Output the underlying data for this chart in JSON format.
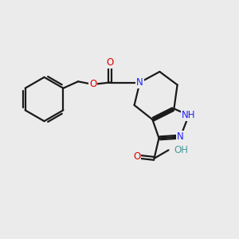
{
  "background_color": "#ebebeb",
  "bond_color": "#1a1a1a",
  "atom_colors": {
    "N": "#2020ff",
    "O": "#dd0000",
    "OH": "#4a9a9a",
    "NH": "#2020ff"
  },
  "lw": 1.6,
  "fs": 8.5,
  "xlim": [
    0,
    10
  ],
  "ylim": [
    0,
    9
  ]
}
